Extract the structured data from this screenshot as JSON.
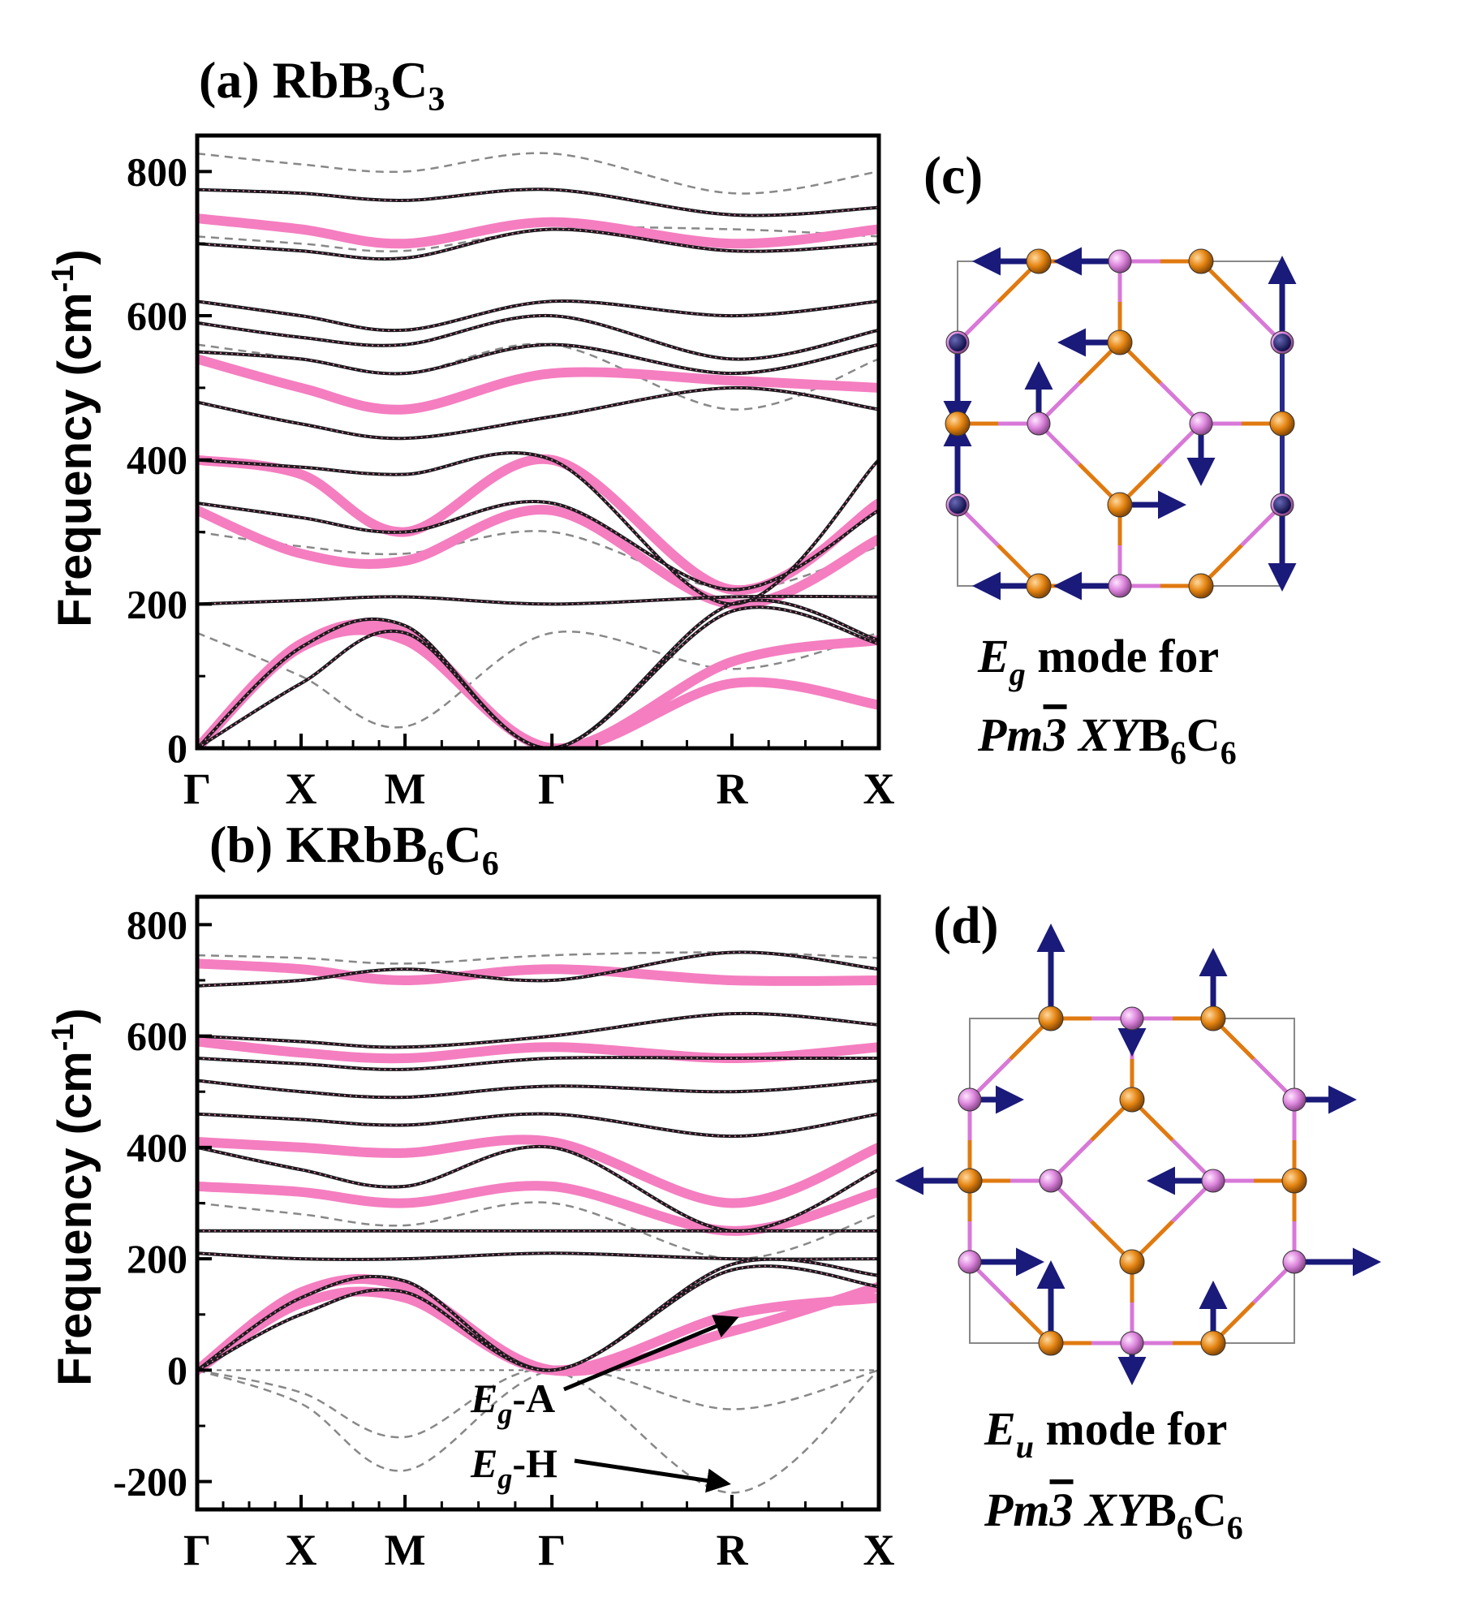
{
  "panel_a": {
    "title_main": "(a) RbB",
    "title_sub1": "3",
    "title_mid": "C",
    "title_sub2": "3"
  },
  "panel_b": {
    "title_main": "(b) KRbB",
    "title_sub1": "6",
    "title_mid": "C",
    "title_sub2": "6",
    "annotation_a_base": "E",
    "annotation_a_sub": "g",
    "annotation_a_tail": "-A",
    "annotation_h_base": "E",
    "annotation_h_sub": "g",
    "annotation_h_tail": "-H"
  },
  "panel_c": {
    "label": "(c)",
    "caption_l1_base": "E",
    "caption_l1_sub": "g",
    "caption_l1_tail": " mode for",
    "caption_l2_pre": "Pm",
    "caption_l2_bar": "3",
    "caption_l2_xy": " XY",
    "caption_l2_b": "B",
    "caption_l2_s1": "6",
    "caption_l2_c": "C",
    "caption_l2_s2": "6"
  },
  "panel_d": {
    "label": "(d)",
    "caption_l1_base": "E",
    "caption_l1_sub": "u",
    "caption_l1_tail": " mode for",
    "caption_l2_pre": "Pm",
    "caption_l2_bar": "3",
    "caption_l2_xy": " XY",
    "caption_l2_b": "B",
    "caption_l2_s1": "6",
    "caption_l2_c": "C",
    "caption_l2_s2": "6"
  },
  "y_axis": {
    "label_main": "Frequency (cm",
    "label_sup": "-1",
    "label_close": ")"
  },
  "colors": {
    "pink": "#f47ec0",
    "dark": "#1a1a1a",
    "gray_dash": "#888888",
    "gray_solid": "#777777",
    "boron": "#e07a10",
    "carbon": "#d878d8",
    "arrow": "#1a1a7a"
  },
  "chart_data": [
    {
      "type": "line",
      "title": "(a) RbB3C3",
      "xlabel": "",
      "ylabel": "Frequency (cm-1)",
      "ylim": [
        0,
        850
      ],
      "yticks": [
        0,
        200,
        400,
        600,
        800
      ],
      "ytick_labels": [
        "0",
        "200",
        "400",
        "600",
        "800"
      ],
      "kpoints": [
        "Γ",
        "X",
        "M",
        "Γ",
        "R",
        "X"
      ],
      "kpoint_pos": [
        0,
        0.5,
        1.0,
        1.707,
        2.573,
        3.28
      ],
      "series": [
        {
          "style": "dark",
          "x": [
            0,
            0.5,
            1.0,
            1.707,
            2.573,
            3.28
          ],
          "y": [
            775,
            770,
            760,
            775,
            740,
            750
          ]
        },
        {
          "style": "dark",
          "x": [
            0,
            0.5,
            1.0,
            1.707,
            2.573,
            3.28
          ],
          "y": [
            700,
            690,
            680,
            720,
            690,
            700
          ]
        },
        {
          "style": "dark",
          "x": [
            0,
            0.5,
            1.0,
            1.707,
            2.573,
            3.28
          ],
          "y": [
            620,
            600,
            580,
            620,
            600,
            620
          ]
        },
        {
          "style": "dark",
          "x": [
            0,
            0.5,
            1.0,
            1.707,
            2.573,
            3.28
          ],
          "y": [
            590,
            570,
            560,
            600,
            540,
            580
          ]
        },
        {
          "style": "dark",
          "x": [
            0,
            0.5,
            1.0,
            1.707,
            2.573,
            3.28
          ],
          "y": [
            550,
            540,
            520,
            560,
            520,
            560
          ]
        },
        {
          "style": "dark",
          "x": [
            0,
            0.5,
            1.0,
            1.707,
            2.573,
            3.28
          ],
          "y": [
            480,
            450,
            430,
            460,
            500,
            470
          ]
        },
        {
          "style": "dark",
          "x": [
            0,
            0.5,
            1.0,
            1.707,
            2.573,
            3.28
          ],
          "y": [
            400,
            390,
            380,
            400,
            200,
            400
          ]
        },
        {
          "style": "dark",
          "x": [
            0,
            0.5,
            1.0,
            1.707,
            2.573,
            3.28
          ],
          "y": [
            340,
            320,
            300,
            340,
            220,
            330
          ]
        },
        {
          "style": "dark",
          "x": [
            0,
            0.5,
            1.0,
            1.707,
            2.573,
            3.28
          ],
          "y": [
            200,
            205,
            210,
            200,
            210,
            210
          ]
        },
        {
          "style": "dark",
          "x": [
            0,
            0.5,
            1.0,
            1.707,
            2.573,
            3.28
          ],
          "y": [
            0,
            140,
            170,
            0,
            200,
            150
          ]
        },
        {
          "style": "dark",
          "x": [
            0,
            0.5,
            1.0,
            1.707,
            2.573,
            3.28
          ],
          "y": [
            0,
            90,
            160,
            0,
            190,
            145
          ]
        },
        {
          "style": "pink",
          "x": [
            0,
            0.5,
            1.0,
            1.707,
            2.573,
            3.28
          ],
          "y": [
            735,
            720,
            700,
            730,
            700,
            720
          ]
        },
        {
          "style": "pink",
          "x": [
            0,
            0.5,
            1.0,
            1.707,
            2.573,
            3.28
          ],
          "y": [
            540,
            500,
            470,
            520,
            510,
            500
          ]
        },
        {
          "style": "pink",
          "x": [
            0,
            0.5,
            1.0,
            1.707,
            2.573,
            3.28
          ],
          "y": [
            400,
            380,
            300,
            400,
            220,
            340
          ]
        },
        {
          "style": "pink",
          "x": [
            0,
            0.5,
            1.0,
            1.707,
            2.573,
            3.28
          ],
          "y": [
            330,
            270,
            260,
            330,
            200,
            290
          ]
        },
        {
          "style": "pink",
          "x": [
            0,
            0.5,
            1.0,
            1.707,
            2.573,
            3.28
          ],
          "y": [
            0,
            145,
            160,
            0,
            120,
            150
          ]
        },
        {
          "style": "pink",
          "x": [
            0,
            0.5,
            1.0,
            1.707,
            2.573,
            3.28
          ],
          "y": [
            0,
            140,
            150,
            0,
            90,
            60
          ]
        },
        {
          "style": "gray",
          "x": [
            0,
            0.5,
            1.0,
            1.707,
            2.573,
            3.28
          ],
          "y": [
            825,
            810,
            800,
            825,
            770,
            800
          ]
        },
        {
          "style": "gray",
          "x": [
            0,
            0.5,
            1.0,
            1.707,
            2.573,
            3.28
          ],
          "y": [
            710,
            700,
            690,
            720,
            720,
            710
          ]
        },
        {
          "style": "gray",
          "x": [
            0,
            0.5,
            1.0,
            1.707,
            2.573,
            3.28
          ],
          "y": [
            560,
            540,
            520,
            560,
            470,
            540
          ]
        },
        {
          "style": "gray",
          "x": [
            0,
            0.5,
            1.0,
            1.707,
            2.573,
            3.28
          ],
          "y": [
            300,
            280,
            270,
            300,
            220,
            280
          ]
        },
        {
          "style": "gray",
          "x": [
            0,
            0.5,
            1.0,
            1.707,
            2.573,
            3.28
          ],
          "y": [
            160,
            100,
            30,
            160,
            110,
            160
          ]
        }
      ]
    },
    {
      "type": "line",
      "title": "(b) KRbB6C6",
      "xlabel": "",
      "ylabel": "Frequency (cm-1)",
      "ylim": [
        -250,
        850
      ],
      "yticks": [
        -200,
        0,
        200,
        400,
        600,
        800
      ],
      "ytick_labels": [
        "-200",
        "0",
        "200",
        "400",
        "600",
        "800"
      ],
      "kpoints": [
        "Γ",
        "X",
        "M",
        "Γ",
        "R",
        "X"
      ],
      "kpoint_pos": [
        0,
        0.5,
        1.0,
        1.707,
        2.573,
        3.28
      ],
      "annotations": [
        "Eg-A",
        "Eg-H"
      ],
      "series": [
        {
          "style": "dark",
          "x": [
            0,
            0.5,
            1.0,
            1.707,
            2.573,
            3.28
          ],
          "y": [
            690,
            700,
            720,
            700,
            750,
            720
          ]
        },
        {
          "style": "dark",
          "x": [
            0,
            0.5,
            1.0,
            1.707,
            2.573,
            3.28
          ],
          "y": [
            600,
            590,
            580,
            600,
            640,
            620
          ]
        },
        {
          "style": "dark",
          "x": [
            0,
            0.5,
            1.0,
            1.707,
            2.573,
            3.28
          ],
          "y": [
            560,
            550,
            540,
            560,
            560,
            560
          ]
        },
        {
          "style": "dark",
          "x": [
            0,
            0.5,
            1.0,
            1.707,
            2.573,
            3.28
          ],
          "y": [
            520,
            500,
            490,
            510,
            500,
            520
          ]
        },
        {
          "style": "dark",
          "x": [
            0,
            0.5,
            1.0,
            1.707,
            2.573,
            3.28
          ],
          "y": [
            460,
            450,
            440,
            460,
            420,
            460
          ]
        },
        {
          "style": "dark",
          "x": [
            0,
            0.5,
            1.0,
            1.707,
            2.573,
            3.28
          ],
          "y": [
            400,
            360,
            330,
            400,
            250,
            360
          ]
        },
        {
          "style": "dark",
          "x": [
            0,
            0.5,
            1.0,
            1.707,
            2.573,
            3.28
          ],
          "y": [
            250,
            250,
            250,
            250,
            250,
            250
          ]
        },
        {
          "style": "dark",
          "x": [
            0,
            0.5,
            1.0,
            1.707,
            2.573,
            3.28
          ],
          "y": [
            210,
            200,
            200,
            210,
            200,
            200
          ]
        },
        {
          "style": "dark",
          "x": [
            0,
            0.5,
            1.0,
            1.707,
            2.573,
            3.28
          ],
          "y": [
            0,
            130,
            160,
            0,
            190,
            170
          ]
        },
        {
          "style": "dark",
          "x": [
            0,
            0.5,
            1.0,
            1.707,
            2.573,
            3.28
          ],
          "y": [
            0,
            100,
            140,
            0,
            180,
            150
          ]
        },
        {
          "style": "pink",
          "x": [
            0,
            0.5,
            1.0,
            1.707,
            2.573,
            3.28
          ],
          "y": [
            730,
            720,
            700,
            720,
            700,
            700
          ]
        },
        {
          "style": "pink",
          "x": [
            0,
            0.5,
            1.0,
            1.707,
            2.573,
            3.28
          ],
          "y": [
            590,
            570,
            560,
            580,
            560,
            580
          ]
        },
        {
          "style": "pink",
          "x": [
            0,
            0.5,
            1.0,
            1.707,
            2.573,
            3.28
          ],
          "y": [
            410,
            400,
            390,
            410,
            300,
            400
          ]
        },
        {
          "style": "pink",
          "x": [
            0,
            0.5,
            1.0,
            1.707,
            2.573,
            3.28
          ],
          "y": [
            330,
            320,
            300,
            330,
            250,
            320
          ]
        },
        {
          "style": "pink",
          "x": [
            0,
            0.5,
            1.0,
            1.707,
            2.573,
            3.28
          ],
          "y": [
            0,
            140,
            150,
            0,
            70,
            150
          ]
        },
        {
          "style": "pink",
          "x": [
            0,
            0.5,
            1.0,
            1.707,
            2.573,
            3.28
          ],
          "y": [
            0,
            120,
            130,
            0,
            100,
            130
          ]
        },
        {
          "style": "gray",
          "x": [
            0,
            0.5,
            1.0,
            1.707,
            2.573,
            3.28
          ],
          "y": [
            745,
            740,
            730,
            745,
            750,
            740
          ]
        },
        {
          "style": "gray",
          "x": [
            0,
            0.5,
            1.0,
            1.707,
            2.573,
            3.28
          ],
          "y": [
            300,
            280,
            260,
            300,
            200,
            280
          ]
        },
        {
          "style": "gray",
          "x": [
            0,
            0.5,
            1.0,
            1.707,
            2.573,
            3.28
          ],
          "y": [
            0,
            -60,
            -180,
            0,
            -70,
            0
          ]
        },
        {
          "style": "gray",
          "x": [
            0,
            0.5,
            1.0,
            1.707,
            2.573,
            3.28
          ],
          "y": [
            0,
            -40,
            -120,
            0,
            -220,
            0
          ]
        }
      ]
    }
  ]
}
